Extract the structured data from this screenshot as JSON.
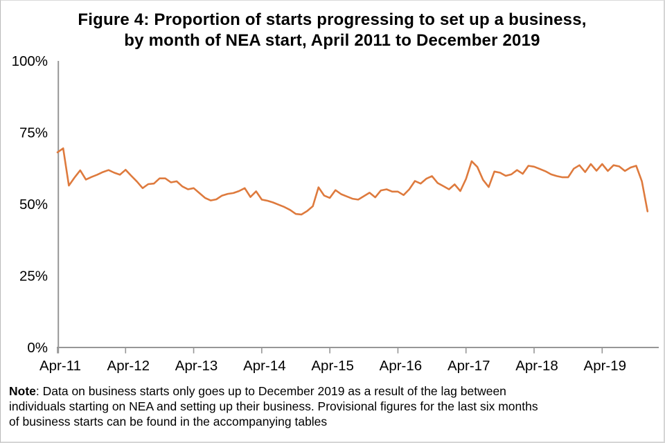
{
  "title": {
    "line1": "Figure 4: Proportion of starts progressing to set up a business,",
    "line2": "by month of NEA start, April 2011 to December 2019"
  },
  "note": {
    "label": "Note",
    "line1_rest": ": Data on business starts only goes up to December 2019 as a result of the lag between",
    "line2": "individuals starting on NEA and setting up their business. Provisional figures for the last six months",
    "line3": "of business starts can be found in the accompanying tables"
  },
  "colors": {
    "line": "#DE7A3D",
    "axis": "#969696",
    "text": "#000000",
    "border": "#C9C9C9"
  },
  "chart_data": {
    "type": "line",
    "title": "Figure 4: Proportion of starts progressing to set up a business, by month of NEA start, April 2011 to December 2019",
    "x_frequency": "monthly",
    "x_start_month": "Apr-11",
    "x_end_month": "Dec-19",
    "x_tick_labels": [
      "Apr-11",
      "Apr-12",
      "Apr-13",
      "Apr-14",
      "Apr-15",
      "Apr-16",
      "Apr-17",
      "Apr-18",
      "Apr-19"
    ],
    "x_tick_month_index": [
      0,
      12,
      24,
      36,
      48,
      60,
      72,
      84,
      96
    ],
    "y_tick_labels": [
      "0%",
      "25%",
      "50%",
      "75%",
      "100%"
    ],
    "y_tick_values": [
      0,
      25,
      50,
      75,
      100
    ],
    "ylim": [
      0,
      100
    ],
    "grid": false,
    "legend": "none",
    "series": [
      {
        "name": "Proportion of starts progressing to set up a business",
        "unit": "%",
        "values": [
          68.1,
          69.5,
          56.5,
          59.3,
          61.8,
          58.6,
          59.5,
          60.3,
          61.2,
          61.9,
          61.0,
          60.3,
          62.0,
          59.9,
          57.9,
          55.6,
          57.0,
          57.2,
          59.0,
          59.0,
          57.6,
          58.0,
          56.2,
          55.2,
          55.6,
          53.9,
          52.2,
          51.3,
          51.7,
          53.0,
          53.6,
          53.9,
          54.6,
          55.6,
          52.5,
          54.5,
          51.6,
          51.2,
          50.6,
          49.8,
          49.0,
          48.0,
          46.6,
          46.4,
          47.6,
          49.3,
          55.9,
          53.0,
          52.2,
          54.9,
          53.5,
          52.7,
          51.9,
          51.6,
          52.8,
          54.0,
          52.4,
          54.8,
          55.2,
          54.4,
          54.4,
          53.2,
          55.2,
          58.1,
          57.2,
          58.9,
          59.8,
          57.4,
          56.3,
          55.2,
          56.9,
          54.6,
          58.8,
          65.0,
          63.0,
          58.5,
          56.0,
          61.4,
          61.0,
          59.9,
          60.4,
          61.9,
          60.6,
          63.4,
          63.1,
          62.3,
          61.5,
          60.4,
          59.8,
          59.4,
          59.4,
          62.4,
          63.6,
          61.2,
          64.0,
          61.7,
          64.0,
          61.6,
          63.6,
          63.2,
          61.6,
          62.8,
          63.4,
          58.0,
          47.5
        ]
      }
    ]
  }
}
